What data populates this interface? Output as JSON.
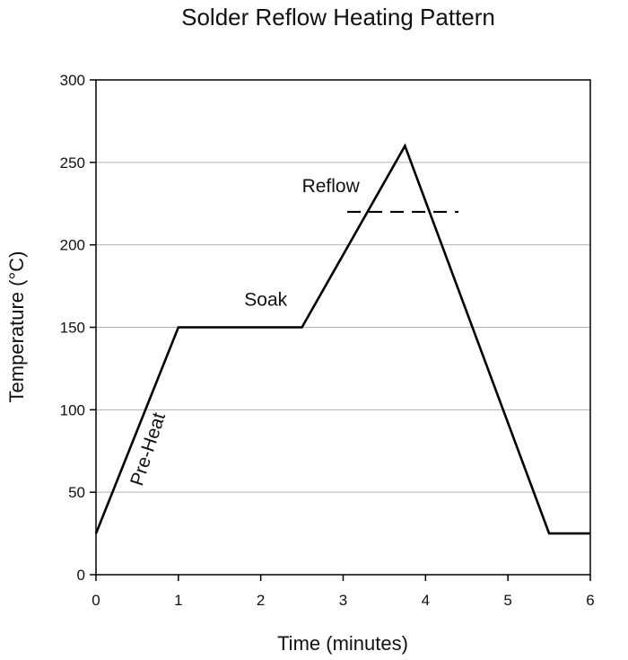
{
  "chart_data": {
    "type": "line",
    "title": "Solder Reflow Heating Pattern",
    "xlabel": "Time (minutes)",
    "ylabel": "Temperature (°C)",
    "xlim": [
      0,
      6
    ],
    "ylim": [
      0,
      300
    ],
    "xticks": [
      0,
      1,
      2,
      3,
      4,
      5,
      6
    ],
    "yticks": [
      0,
      50,
      100,
      150,
      200,
      250,
      300
    ],
    "grid": "horizontal",
    "series": [
      {
        "x": [
          0,
          1,
          2.5,
          3.75,
          5.5,
          6
        ],
        "y": [
          25,
          150,
          150,
          260,
          25,
          25
        ],
        "color": "#000000"
      }
    ],
    "reference_line": {
      "x": [
        3.05,
        4.4
      ],
      "y": 220,
      "style": "dashed"
    },
    "annotations": [
      {
        "text": "Pre-Heat",
        "x": 0.7,
        "y": 75,
        "rotate": -72
      },
      {
        "text": "Soak",
        "x": 1.8,
        "y": 163
      },
      {
        "text": "Reflow",
        "x": 2.5,
        "y": 232
      }
    ]
  }
}
